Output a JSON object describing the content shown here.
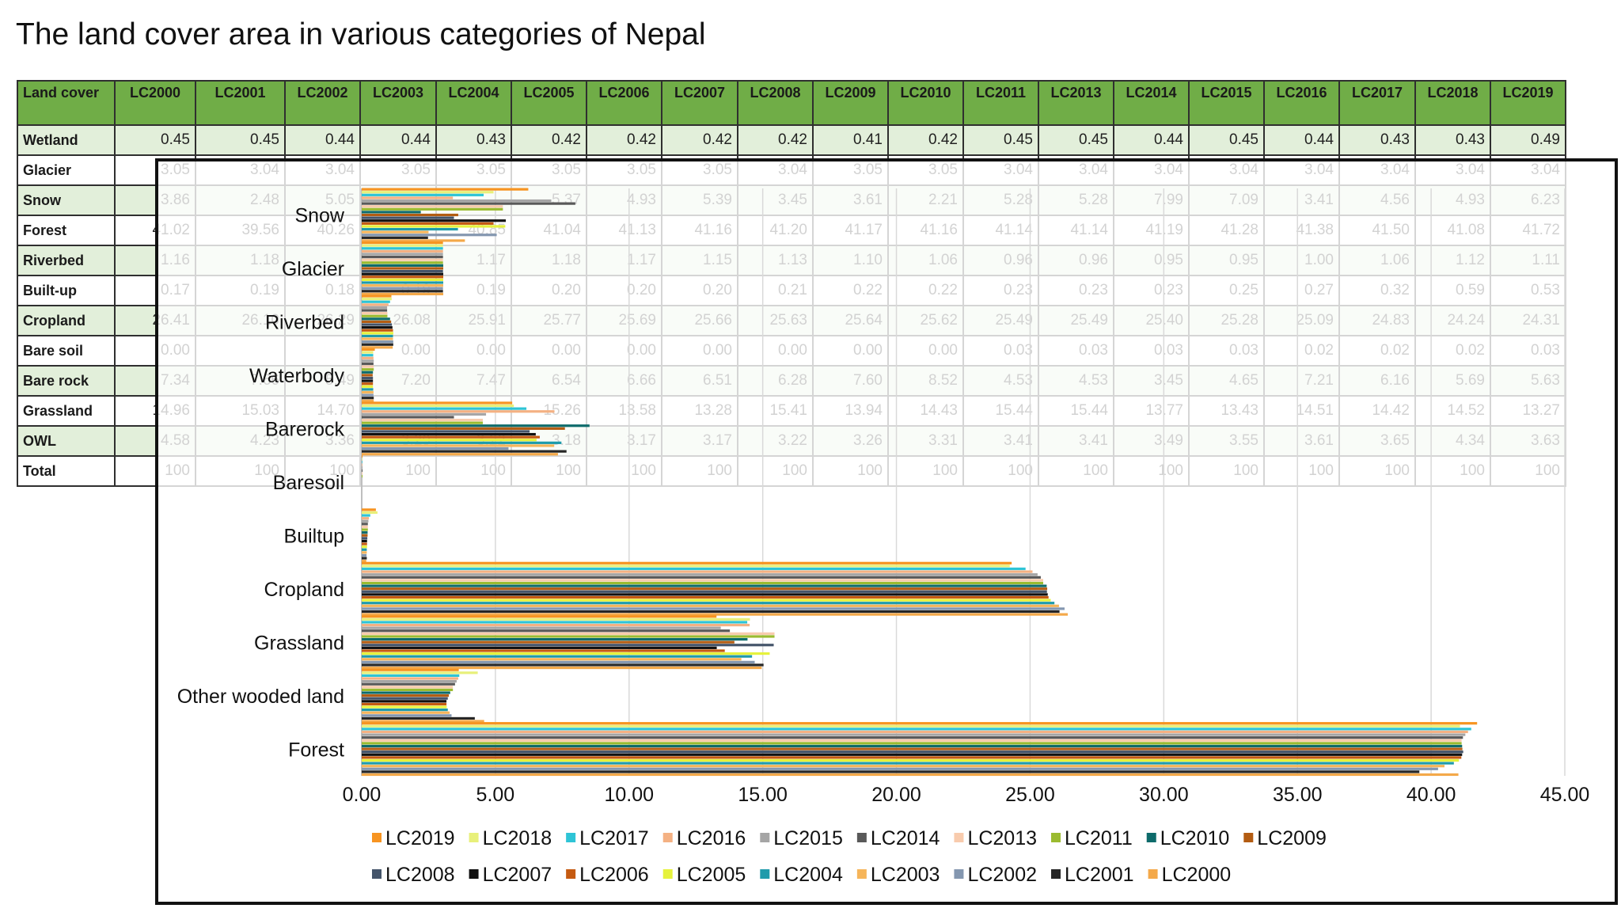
{
  "title": "The land cover area in various categories of Nepal",
  "table": {
    "headers": [
      "Land cover",
      "LC2000",
      "LC2001",
      "LC2002",
      "LC2003",
      "LC2004",
      "LC2005",
      "LC2006",
      "LC2007",
      "LC2008",
      "LC2009",
      "LC2010",
      "LC2011",
      "LC2013",
      "LC2014",
      "LC2015",
      "LC2016",
      "LC2017",
      "LC2018",
      "LC2019"
    ],
    "rows": [
      {
        "label": "Wetland",
        "values": [
          "0.45",
          "0.45",
          "0.44",
          "0.44",
          "0.43",
          "0.42",
          "0.42",
          "0.42",
          "0.42",
          "0.41",
          "0.42",
          "0.45",
          "0.45",
          "0.44",
          "0.45",
          "0.44",
          "0.43",
          "0.43",
          "0.49"
        ]
      },
      {
        "label": "Glacier",
        "values": [
          "3.05",
          "3.04",
          "3.04",
          "3.05",
          "3.05",
          "3.05",
          "3.05",
          "3.05",
          "3.04",
          "3.05",
          "3.05",
          "3.04",
          "3.04",
          "3.04",
          "3.04",
          "3.04",
          "3.04",
          "3.04",
          "3.04"
        ]
      },
      {
        "label": "Snow",
        "values": [
          "3.86",
          "2.48",
          "5.05",
          "",
          "",
          "5.37",
          "4.93",
          "5.39",
          "3.45",
          "3.61",
          "2.21",
          "5.28",
          "5.28",
          "7.99",
          "7.09",
          "3.41",
          "4.56",
          "4.93",
          "6.23"
        ]
      },
      {
        "label": "Forest",
        "values": [
          "41.02",
          "39.56",
          "40.26",
          "",
          "40.85",
          "41.04",
          "41.13",
          "41.16",
          "41.20",
          "41.17",
          "41.16",
          "41.14",
          "41.14",
          "41.19",
          "41.28",
          "41.38",
          "41.50",
          "41.08",
          "41.72"
        ]
      },
      {
        "label": "Riverbed",
        "values": [
          "1.16",
          "1.18",
          "",
          "",
          "1.17",
          "1.18",
          "1.17",
          "1.15",
          "1.13",
          "1.10",
          "1.06",
          "0.96",
          "0.96",
          "0.95",
          "0.95",
          "1.00",
          "1.06",
          "1.12",
          "1.11"
        ]
      },
      {
        "label": "Built-up",
        "values": [
          "0.17",
          "0.19",
          "0.18",
          "0.19",
          "0.19",
          "0.20",
          "0.20",
          "0.20",
          "0.21",
          "0.22",
          "0.22",
          "0.23",
          "0.23",
          "0.23",
          "0.25",
          "0.27",
          "0.32",
          "0.59",
          "0.53"
        ]
      },
      {
        "label": "Cropland",
        "values": [
          "26.41",
          "26.10",
          "26.29",
          "26.08",
          "25.91",
          "25.77",
          "25.69",
          "25.66",
          "25.63",
          "25.64",
          "25.62",
          "25.49",
          "25.49",
          "25.40",
          "25.28",
          "25.09",
          "24.83",
          "24.24",
          "24.31"
        ]
      },
      {
        "label": "Bare soil",
        "values": [
          "0.00",
          "",
          "",
          "0.00",
          "0.00",
          "0.00",
          "0.00",
          "0.00",
          "0.00",
          "0.00",
          "0.00",
          "0.03",
          "0.03",
          "0.03",
          "0.03",
          "0.02",
          "0.02",
          "0.02",
          "0.03"
        ]
      },
      {
        "label": "Bare rock",
        "values": [
          "7.34",
          "7.66",
          "5.49",
          "7.20",
          "7.47",
          "6.54",
          "6.66",
          "6.51",
          "6.28",
          "7.60",
          "8.52",
          "4.53",
          "4.53",
          "3.45",
          "4.65",
          "7.21",
          "6.16",
          "5.69",
          "5.63"
        ]
      },
      {
        "label": "Grassland",
        "values": [
          "14.96",
          "15.03",
          "14.70",
          "",
          "",
          "15.26",
          "13.58",
          "13.28",
          "15.41",
          "13.94",
          "14.43",
          "15.44",
          "15.44",
          "13.77",
          "13.43",
          "14.51",
          "14.42",
          "14.52",
          "13.27"
        ]
      },
      {
        "label": "OWL",
        "values": [
          "4.58",
          "4.23",
          "3.36",
          "3.29",
          "3.22",
          "3.18",
          "3.17",
          "3.17",
          "3.22",
          "3.26",
          "3.31",
          "3.41",
          "3.41",
          "3.49",
          "3.55",
          "3.61",
          "3.65",
          "4.34",
          "3.63"
        ]
      },
      {
        "label": "Total",
        "values": [
          "100",
          "100",
          "100",
          "100",
          "100",
          "100",
          "100",
          "100",
          "100",
          "100",
          "100",
          "100",
          "100",
          "100",
          "100",
          "100",
          "100",
          "100",
          "100"
        ]
      }
    ]
  },
  "chart_data": {
    "type": "bar",
    "orientation": "horizontal",
    "categories": [
      "Snow",
      "Glacier",
      "Riverbed",
      "Waterbody",
      "Barerock",
      "Baresoil",
      "Builtup",
      "Cropland",
      "Grassland",
      "Other wooded land",
      "Forest"
    ],
    "xlim": [
      0,
      45
    ],
    "xticks": [
      "0.00",
      "5.00",
      "10.00",
      "15.00",
      "20.00",
      "25.00",
      "30.00",
      "35.00",
      "40.00",
      "45.00"
    ],
    "grid": true,
    "legend_position": "bottom",
    "series": [
      {
        "name": "LC2019",
        "color": "#f79421",
        "values": [
          6.23,
          3.04,
          1.11,
          0.49,
          5.63,
          0.03,
          0.53,
          24.31,
          13.27,
          3.63,
          41.72
        ]
      },
      {
        "name": "LC2018",
        "color": "#e8f07a",
        "values": [
          4.93,
          3.04,
          1.12,
          0.43,
          5.69,
          0.02,
          0.59,
          24.24,
          14.52,
          4.34,
          41.08
        ]
      },
      {
        "name": "LC2017",
        "color": "#2ec4d6",
        "values": [
          4.56,
          3.04,
          1.06,
          0.43,
          6.16,
          0.02,
          0.32,
          24.83,
          14.42,
          3.65,
          41.5
        ]
      },
      {
        "name": "LC2016",
        "color": "#f4b183",
        "values": [
          3.41,
          3.04,
          1.0,
          0.44,
          7.21,
          0.02,
          0.27,
          25.09,
          14.51,
          3.61,
          41.38
        ]
      },
      {
        "name": "LC2015",
        "color": "#a5a5a5",
        "values": [
          7.09,
          3.04,
          0.95,
          0.45,
          4.65,
          0.03,
          0.25,
          25.28,
          13.43,
          3.55,
          41.28
        ]
      },
      {
        "name": "LC2014",
        "color": "#595959",
        "values": [
          7.99,
          3.04,
          0.95,
          0.44,
          3.45,
          0.03,
          0.23,
          25.4,
          13.77,
          3.49,
          41.19
        ]
      },
      {
        "name": "LC2013",
        "color": "#f8cbad",
        "values": [
          5.28,
          3.04,
          0.96,
          0.45,
          4.53,
          0.03,
          0.23,
          25.49,
          15.44,
          3.41,
          41.14
        ]
      },
      {
        "name": "LC2011",
        "color": "#9bbb30",
        "values": [
          5.28,
          3.04,
          0.96,
          0.45,
          4.53,
          0.03,
          0.23,
          25.49,
          15.44,
          3.41,
          41.14
        ]
      },
      {
        "name": "LC2010",
        "color": "#0e6b6b",
        "values": [
          2.21,
          3.05,
          1.06,
          0.42,
          8.52,
          0.0,
          0.22,
          25.62,
          14.43,
          3.31,
          41.16
        ]
      },
      {
        "name": "LC2009",
        "color": "#b35c12",
        "values": [
          3.61,
          3.05,
          1.1,
          0.41,
          7.6,
          0.0,
          0.22,
          25.64,
          13.94,
          3.26,
          41.17
        ]
      },
      {
        "name": "LC2008",
        "color": "#44546a",
        "values": [
          3.45,
          3.04,
          1.13,
          0.42,
          6.28,
          0.0,
          0.21,
          25.63,
          15.41,
          3.22,
          41.2
        ]
      },
      {
        "name": "LC2007",
        "color": "#111111",
        "values": [
          5.39,
          3.05,
          1.15,
          0.42,
          6.51,
          0.0,
          0.2,
          25.66,
          13.28,
          3.17,
          41.16
        ]
      },
      {
        "name": "LC2006",
        "color": "#c55a11",
        "values": [
          4.93,
          3.05,
          1.17,
          0.42,
          6.66,
          0.0,
          0.2,
          25.69,
          13.58,
          3.17,
          41.13
        ]
      },
      {
        "name": "LC2005",
        "color": "#e6f23c",
        "values": [
          5.37,
          3.05,
          1.18,
          0.42,
          6.54,
          0.0,
          0.2,
          25.77,
          15.26,
          3.18,
          41.04
        ]
      },
      {
        "name": "LC2004",
        "color": "#1f9bab",
        "values": [
          3.6,
          3.05,
          1.17,
          0.43,
          7.47,
          0.0,
          0.19,
          25.91,
          14.6,
          3.22,
          40.85
        ]
      },
      {
        "name": "LC2003",
        "color": "#f6b55a",
        "values": [
          2.5,
          3.05,
          1.17,
          0.44,
          7.2,
          0.0,
          0.19,
          26.08,
          14.2,
          3.29,
          40.5
        ]
      },
      {
        "name": "LC2002",
        "color": "#8497b0",
        "values": [
          5.05,
          3.04,
          1.18,
          0.44,
          5.49,
          0.0,
          0.18,
          26.29,
          14.7,
          3.36,
          40.26
        ]
      },
      {
        "name": "LC2001",
        "color": "#262626",
        "values": [
          2.48,
          3.04,
          1.18,
          0.45,
          7.66,
          0.0,
          0.19,
          26.1,
          15.03,
          4.23,
          39.56
        ]
      },
      {
        "name": "LC2000",
        "color": "#f4a94a",
        "values": [
          3.86,
          3.05,
          1.16,
          0.45,
          7.34,
          0.0,
          0.17,
          26.41,
          14.96,
          4.58,
          41.02
        ]
      }
    ],
    "legend_order": [
      "LC2019",
      "LC2018",
      "LC2017",
      "LC2016",
      "LC2015",
      "LC2014",
      "LC2013",
      "LC2011",
      "LC2010",
      "LC2009",
      "LC2008",
      "LC2007",
      "LC2006",
      "LC2005",
      "LC2004",
      "LC2003",
      "LC2002",
      "LC2001",
      "LC2000"
    ]
  }
}
